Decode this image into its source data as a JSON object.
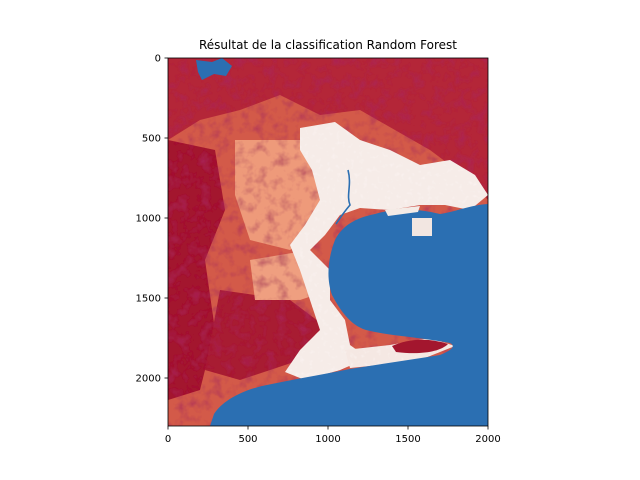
{
  "chart_data": {
    "type": "heatmap",
    "title": "Résultat de la classification Random Forest",
    "xlabel": "",
    "ylabel": "",
    "x_ticks": [
      0,
      500,
      1000,
      1500,
      2000
    ],
    "y_ticks": [
      0,
      500,
      1000,
      1500,
      2000
    ],
    "xlim": [
      0,
      2000
    ],
    "ylim": [
      2300,
      0
    ],
    "y_axis_inverted": true,
    "grid": false,
    "legend": "none",
    "colormap": "RdBu",
    "colors": {
      "water": "#2b6fb2",
      "urban_bare": "#f7f1ee",
      "light_vegetation": "#f0a07e",
      "medium_vegetation": "#d6604d",
      "dense_vegetation": "#a01530",
      "darkest_vegetation": "#67001f"
    }
  }
}
